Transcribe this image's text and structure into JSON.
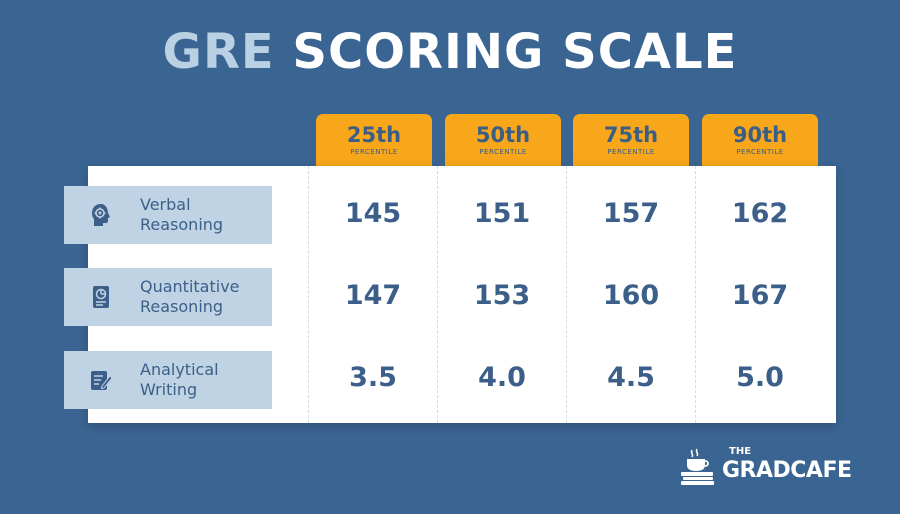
{
  "title": {
    "part1": "GRE",
    "part2": "SCORING SCALE"
  },
  "percentiles": [
    {
      "label": "25th",
      "sub": "PERCENTILE"
    },
    {
      "label": "50th",
      "sub": "PERCENTILE"
    },
    {
      "label": "75th",
      "sub": "PERCENTILE"
    },
    {
      "label": "90th",
      "sub": "PERCENTILE"
    }
  ],
  "rows": [
    {
      "line1": "Verbal",
      "line2": "Reasoning",
      "icon": "head-gear-icon",
      "values": [
        "145",
        "151",
        "157",
        "162"
      ]
    },
    {
      "line1": "Quantitative",
      "line2": "Reasoning",
      "icon": "chart-document-icon",
      "values": [
        "147",
        "153",
        "160",
        "167"
      ]
    },
    {
      "line1": "Analytical",
      "line2": "Writing",
      "icon": "document-pencil-icon",
      "values": [
        "3.5",
        "4.0",
        "4.5",
        "5.0"
      ]
    }
  ],
  "logo": {
    "the": "THE",
    "name": "GRADCAFE",
    "icon": "coffee-books-icon"
  },
  "colors": {
    "background": "#3a6592",
    "accent_orange": "#f7a719",
    "label_bg": "#bfd3e4",
    "text_blue": "#3c5f8a",
    "title_light": "#b9d1e3"
  }
}
